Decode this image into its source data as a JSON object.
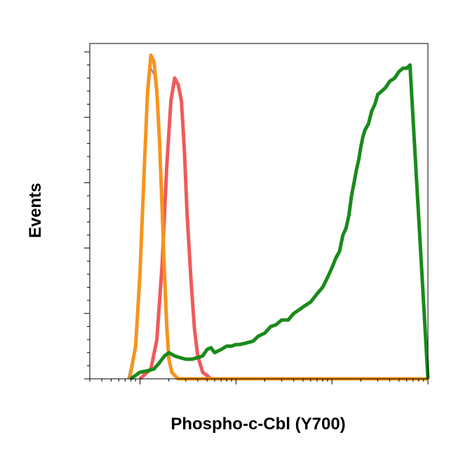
{
  "chart_data": {
    "type": "line",
    "title": "",
    "xlabel": "Phospho-c-Cbl (Y700)",
    "ylabel": "Events",
    "x_scale": "log",
    "xlim": [
      0.3,
      1000
    ],
    "ylim": [
      0,
      100
    ],
    "grid": false,
    "legend": "none",
    "series": [
      {
        "color": "#7b7fc4",
        "x": [
          0.75,
          0.9,
          1.0,
          1.1,
          1.2,
          1.3,
          1.4,
          1.5,
          1.6,
          1.7,
          1.8,
          1.9,
          2.0,
          2.1,
          2.3,
          2.6
        ],
        "y": [
          0,
          10,
          30,
          60,
          85,
          95,
          93,
          85,
          70,
          50,
          30,
          15,
          6,
          2,
          1,
          0
        ]
      },
      {
        "color": "#f05a5a",
        "x": [
          1.0,
          1.3,
          1.5,
          1.7,
          1.9,
          2.1,
          2.3,
          2.5,
          2.7,
          2.9,
          3.1,
          3.4,
          3.7,
          4.0,
          4.5,
          5.0,
          5.5
        ],
        "y": [
          0,
          3,
          12,
          35,
          65,
          85,
          92,
          90,
          85,
          70,
          50,
          30,
          15,
          7,
          2,
          1,
          0
        ]
      },
      {
        "color": "#f7941d",
        "x": [
          0.78,
          0.9,
          1.0,
          1.1,
          1.2,
          1.3,
          1.4,
          1.5,
          1.6,
          1.7,
          1.8,
          1.9,
          2.0,
          2.15,
          2.3,
          2.5
        ],
        "y": [
          0,
          10,
          32,
          62,
          88,
          99,
          97,
          88,
          72,
          52,
          32,
          16,
          6,
          2,
          1,
          0
        ]
      },
      {
        "color": "#1a8a1a",
        "x": [
          0.8,
          1.0,
          1.2,
          1.4,
          1.6,
          1.8,
          2.0,
          2.3,
          2.6,
          3.0,
          3.5,
          4.0,
          4.5,
          5.0,
          5.5,
          6.0,
          7.0,
          8.0,
          9.0,
          10,
          11,
          13,
          15,
          17,
          20,
          23,
          26,
          30,
          35,
          40,
          45,
          50,
          60,
          70,
          80,
          90,
          100,
          110,
          120,
          130,
          140,
          150,
          160,
          170,
          180,
          190,
          200,
          210,
          220,
          240,
          260,
          280,
          300,
          330,
          360,
          400,
          450,
          500,
          550,
          600,
          650
        ],
        "y": [
          0,
          2,
          2.5,
          3,
          5,
          7,
          8,
          7,
          6.5,
          6,
          6,
          6.5,
          7,
          9,
          9.5,
          8,
          9,
          10,
          10,
          10.5,
          10.5,
          11,
          11.5,
          13,
          14,
          16,
          16.5,
          18,
          18,
          20,
          21,
          22,
          23.5,
          26,
          28,
          31,
          34,
          37,
          39,
          44,
          46,
          50,
          56,
          60,
          64,
          67,
          71,
          74,
          76,
          78,
          82,
          84,
          87,
          88,
          89,
          91,
          92,
          94,
          95,
          95,
          96
        ]
      }
    ]
  }
}
